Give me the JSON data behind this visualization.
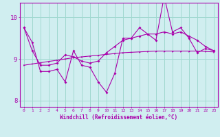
{
  "xlabel": "Windchill (Refroidissement éolien,°C)",
  "bg_color": "#d0eef0",
  "grid_color": "#a0d8d0",
  "line_color": "#aa00aa",
  "x": [
    0,
    1,
    2,
    3,
    4,
    5,
    6,
    7,
    8,
    9,
    10,
    11,
    12,
    13,
    14,
    15,
    16,
    17,
    18,
    19,
    20,
    21,
    22,
    23
  ],
  "y_main": [
    9.75,
    9.4,
    8.7,
    8.7,
    8.75,
    8.45,
    9.2,
    8.85,
    8.8,
    8.45,
    8.2,
    8.65,
    9.5,
    9.5,
    9.75,
    9.6,
    9.45,
    10.5,
    9.65,
    9.75,
    9.5,
    9.15,
    9.25,
    9.2
  ],
  "y_smooth": [
    9.75,
    9.2,
    8.85,
    8.85,
    8.9,
    9.1,
    9.05,
    8.95,
    8.9,
    8.95,
    9.15,
    9.3,
    9.45,
    9.5,
    9.55,
    9.6,
    9.6,
    9.65,
    9.6,
    9.65,
    9.55,
    9.45,
    9.3,
    9.2
  ],
  "y_trend": [
    8.85,
    8.88,
    8.91,
    8.94,
    8.97,
    9.0,
    9.03,
    9.05,
    9.07,
    9.09,
    9.11,
    9.13,
    9.15,
    9.16,
    9.17,
    9.18,
    9.19,
    9.19,
    9.19,
    9.19,
    9.19,
    9.19,
    9.18,
    9.17
  ],
  "ylim": [
    7.85,
    10.35
  ],
  "yticks": [
    8,
    9,
    10
  ],
  "xlim": [
    -0.5,
    23.5
  ]
}
